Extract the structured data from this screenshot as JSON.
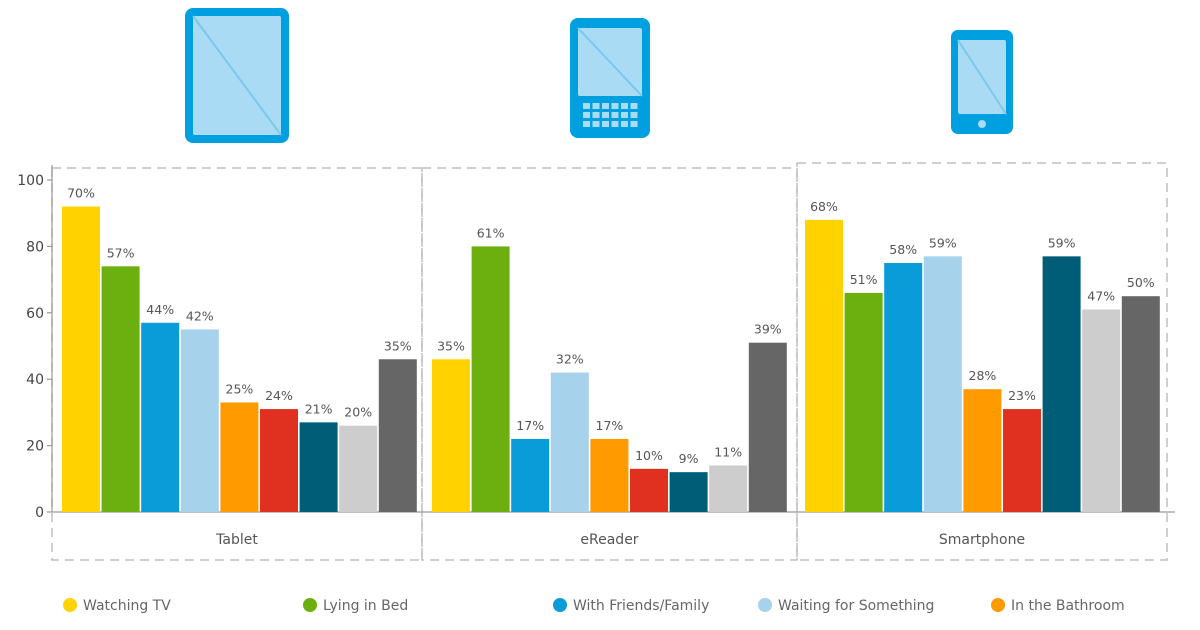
{
  "chart_data": {
    "type": "bar",
    "categories": [
      "Tablet",
      "eReader",
      "Smartphone"
    ],
    "y_ticks": [
      "0",
      "20",
      "40",
      "60",
      "80",
      "100"
    ],
    "ylim": [
      0,
      100
    ],
    "grid": false,
    "legend_position": "bottom",
    "icons": [
      "tablet-icon",
      "ereader-icon",
      "smartphone-icon"
    ],
    "series": [
      {
        "name": "Watching TV",
        "color": "#ffd200",
        "values": [
          92,
          46,
          88
        ],
        "labels": [
          "70%",
          "35%",
          "68%"
        ]
      },
      {
        "name": "Lying in Bed",
        "color": "#6bb00f",
        "values": [
          74,
          80,
          66
        ],
        "labels": [
          "57%",
          "61%",
          "51%"
        ]
      },
      {
        "name": "With Friends/Family",
        "color": "#0a9bd9",
        "values": [
          57,
          22,
          75
        ],
        "labels": [
          "44%",
          "17%",
          "58%"
        ]
      },
      {
        "name": "Waiting for Something",
        "color": "#a6d2ec",
        "values": [
          55,
          42,
          77
        ],
        "labels": [
          "42%",
          "32%",
          "59%"
        ]
      },
      {
        "name": "In the Bathroom",
        "color": "#ff9a00",
        "values": [
          33,
          22,
          37
        ],
        "labels": [
          "25%",
          "17%",
          "28%"
        ]
      },
      {
        "name": "",
        "color": "#e03020",
        "values": [
          31,
          13,
          31
        ],
        "labels": [
          "24%",
          "10%",
          "23%"
        ]
      },
      {
        "name": "",
        "color": "#005d78",
        "values": [
          27,
          12,
          77
        ],
        "labels": [
          "21%",
          "9%",
          "59%"
        ]
      },
      {
        "name": "",
        "color": "#cdcdcd",
        "values": [
          26,
          14,
          61
        ],
        "labels": [
          "20%",
          "11%",
          "47%"
        ]
      },
      {
        "name": "",
        "color": "#666666",
        "values": [
          46,
          51,
          65
        ],
        "labels": [
          "35%",
          "39%",
          "50%"
        ]
      }
    ]
  }
}
